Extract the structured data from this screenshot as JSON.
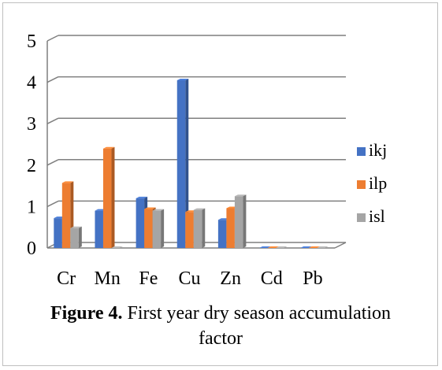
{
  "chart_data": {
    "type": "bar",
    "style": "3d-clustered-column",
    "categories": [
      "Cr",
      "Mn",
      "Fe",
      "Cu",
      "Zn",
      "Cd",
      "Pb"
    ],
    "series": [
      {
        "name": "ikj",
        "color": "#4472c4",
        "values": [
          0.72,
          0.9,
          1.2,
          4.05,
          0.68,
          0.0,
          0.0
        ]
      },
      {
        "name": "ilp",
        "color": "#ed7d31",
        "values": [
          1.57,
          2.4,
          0.94,
          0.87,
          0.96,
          0.0,
          0.0
        ]
      },
      {
        "name": "isl",
        "color": "#a5a5a5",
        "values": [
          0.48,
          0.0,
          0.9,
          0.92,
          1.25,
          0.0,
          0.0
        ]
      }
    ],
    "yticks": [
      "0",
      "1",
      "2",
      "3",
      "4",
      "5"
    ],
    "ylim": [
      0,
      5
    ],
    "grid": true,
    "legend_position": "right"
  },
  "caption": {
    "label": "Figure 4.",
    "text": " First year dry season accumulation factor"
  }
}
